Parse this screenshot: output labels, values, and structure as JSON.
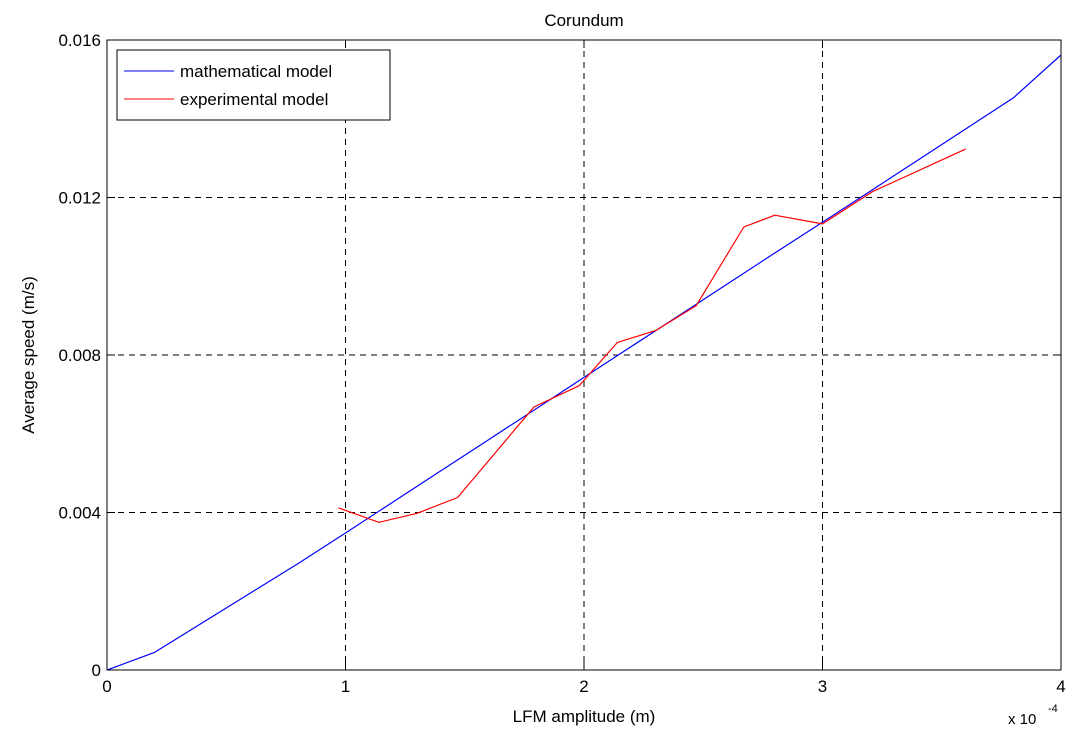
{
  "chart_data": {
    "type": "line",
    "title": "Corundum",
    "xlabel": "LFM amplitude  (m)",
    "ylabel": "Average speed  (m/s)",
    "xlim": [
      0,
      4
    ],
    "ylim": [
      0,
      0.016
    ],
    "x_scale_label": {
      "base": "x 10",
      "exponent": "-4"
    },
    "x_ticks": [
      {
        "value": 0,
        "label": "0"
      },
      {
        "value": 1,
        "label": "1"
      },
      {
        "value": 2,
        "label": "2"
      },
      {
        "value": 3,
        "label": "3"
      },
      {
        "value": 4,
        "label": "4"
      }
    ],
    "y_ticks": [
      {
        "value": 0,
        "label": "0"
      },
      {
        "value": 0.004,
        "label": "0.004"
      },
      {
        "value": 0.008,
        "label": "0.008"
      },
      {
        "value": 0.012,
        "label": "0.012"
      },
      {
        "value": 0.016,
        "label": "0.016"
      }
    ],
    "grid": true,
    "legend_position": "top-left",
    "series": [
      {
        "name": "mathematical model",
        "color": "#0000ff",
        "x": [
          0,
          0.2,
          0.4,
          0.6,
          0.8,
          1.0,
          1.2,
          1.4,
          1.6,
          1.8,
          2.0,
          2.2,
          2.4,
          2.6,
          2.8,
          3.0,
          3.2,
          3.4,
          3.6,
          3.8,
          4.0
        ],
        "y": [
          0,
          0.00045,
          0.0012,
          0.00195,
          0.0027,
          0.00348,
          0.00427,
          0.00506,
          0.00585,
          0.00664,
          0.00743,
          0.00822,
          0.00901,
          0.0098,
          0.01059,
          0.01137,
          0.01216,
          0.01295,
          0.01374,
          0.01453,
          0.01562
        ]
      },
      {
        "name": "experimental model",
        "color": "#ff0000",
        "x": [
          0.97,
          1.14,
          1.3,
          1.47,
          1.79,
          1.98,
          2.14,
          2.3,
          2.47,
          2.67,
          2.8,
          3.0,
          3.21,
          3.6
        ],
        "y": [
          0.00412,
          0.00375,
          0.00398,
          0.00438,
          0.00668,
          0.00722,
          0.00832,
          0.00862,
          0.00925,
          0.01125,
          0.01155,
          0.01133,
          0.01215,
          0.01323
        ]
      }
    ]
  }
}
